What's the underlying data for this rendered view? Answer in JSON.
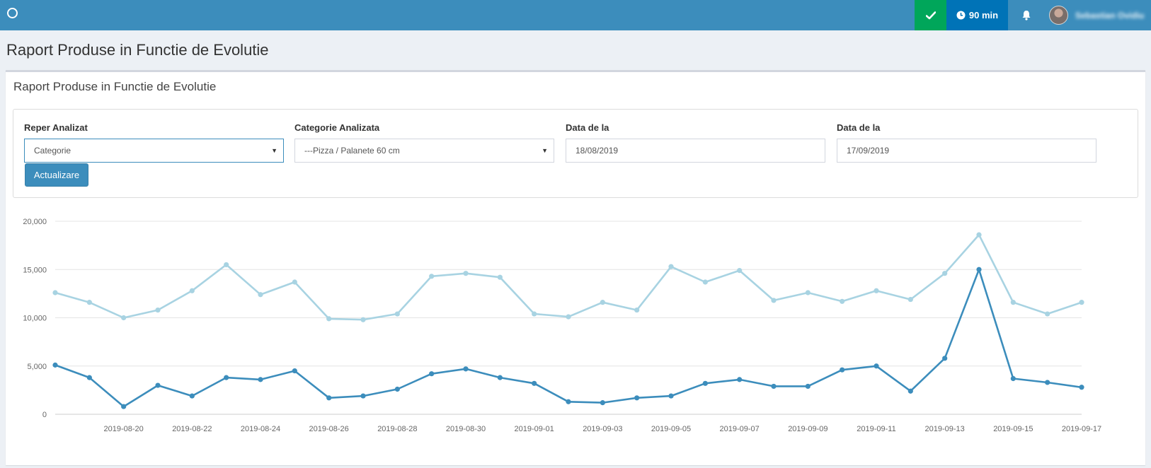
{
  "topbar": {
    "timer_label": "90 min",
    "user_name": "Sebastian Ovidiu",
    "icons": {
      "logo": "circle-icon",
      "check": "check-icon",
      "timer": "clock-icon",
      "notifications": "bell-icon"
    },
    "colors": {
      "bar": "#3c8dbc",
      "check": "#00a65a",
      "timer": "#0073b7"
    }
  },
  "page": {
    "title": "Raport Produse in Functie de Evolutie"
  },
  "box": {
    "title": "Raport Produse in Functie de Evolutie"
  },
  "filters": {
    "reper": {
      "label": "Reper Analizat",
      "value": "Categorie"
    },
    "categorie": {
      "label": "Categorie Analizata",
      "value": "---Pizza / Palanete 60 cm"
    },
    "data_start": {
      "label": "Data de la",
      "value": "18/08/2019"
    },
    "data_end": {
      "label": "Data de la",
      "value": "17/09/2019"
    },
    "update_button": "Actualizare"
  },
  "chart_data": {
    "type": "line",
    "x": [
      "2019-08-18",
      "2019-08-19",
      "2019-08-20",
      "2019-08-21",
      "2019-08-22",
      "2019-08-23",
      "2019-08-24",
      "2019-08-25",
      "2019-08-26",
      "2019-08-27",
      "2019-08-28",
      "2019-08-29",
      "2019-08-30",
      "2019-08-31",
      "2019-09-01",
      "2019-09-02",
      "2019-09-03",
      "2019-09-04",
      "2019-09-05",
      "2019-09-06",
      "2019-09-07",
      "2019-09-08",
      "2019-09-09",
      "2019-09-10",
      "2019-09-11",
      "2019-09-12",
      "2019-09-13",
      "2019-09-14",
      "2019-09-15",
      "2019-09-16",
      "2019-09-17"
    ],
    "x_tick_labels": [
      "2019-08-20",
      "2019-08-22",
      "2019-08-24",
      "2019-08-26",
      "2019-08-28",
      "2019-08-30",
      "2019-09-01",
      "2019-09-03",
      "2019-09-05",
      "2019-09-07",
      "2019-09-09",
      "2019-09-11",
      "2019-09-13",
      "2019-09-15",
      "2019-09-17"
    ],
    "y_tick_labels": [
      "0",
      "5,000",
      "10,000",
      "15,000",
      "20,000"
    ],
    "ylim": [
      0,
      20000
    ],
    "grid": true,
    "legend": "none",
    "series": [
      {
        "color": "#a8d3e2",
        "values": [
          12600,
          11600,
          10000,
          10800,
          12800,
          15500,
          12400,
          13700,
          9900,
          9800,
          10400,
          14300,
          14600,
          14200,
          10400,
          10100,
          11600,
          10800,
          15300,
          13700,
          14900,
          11800,
          12600,
          11700,
          12800,
          11900,
          14600,
          18600,
          11600,
          10400,
          11600
        ]
      },
      {
        "color": "#3c8dbc",
        "values": [
          5100,
          3800,
          800,
          3000,
          1900,
          3800,
          3600,
          4500,
          1700,
          1900,
          2600,
          4200,
          4700,
          3800,
          3200,
          1300,
          1200,
          1700,
          1900,
          3200,
          3600,
          2900,
          2900,
          4600,
          5000,
          2400,
          5800,
          15000,
          3700,
          3300,
          2800
        ]
      }
    ]
  }
}
